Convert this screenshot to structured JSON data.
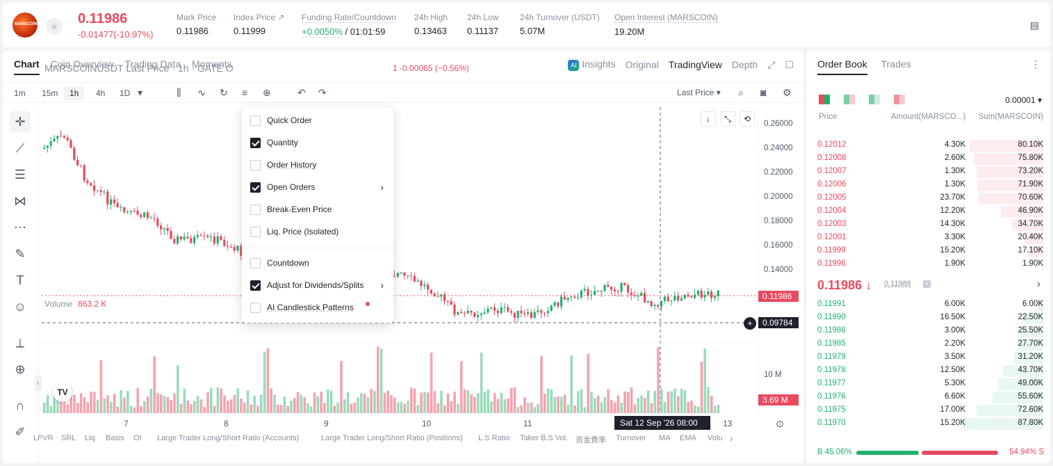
{
  "ticker": {
    "logo_text": "MARSCOIN",
    "last_price": "0.11986",
    "change": "-0.01477(-10.97%)",
    "stats": [
      {
        "label": "Mark Price",
        "value": "0.11986"
      },
      {
        "label": "Index Price ↗",
        "value": "0.11999"
      },
      {
        "label": "Funding Rate/Countdown",
        "value_rate": "+0.0050%",
        "value_cd": "/ 01:01:59"
      },
      {
        "label": "24h High",
        "value": "0.13463"
      },
      {
        "label": "24h Low",
        "value": "0.11137"
      },
      {
        "label": "24h Turnover (USDT)",
        "value": "5.07M"
      },
      {
        "label": "Open Interest (MARSCOIN)",
        "value": "19.20M"
      }
    ]
  },
  "chart_tabs": [
    "Chart",
    "Coin Overview",
    "Trading Data",
    "Moments"
  ],
  "view_tabs": {
    "insights": "Insights",
    "original": "Original",
    "tradingview": "TradingView",
    "depth": "Depth"
  },
  "timeframes": [
    "1m",
    "15m",
    "1h",
    "4h",
    "1D"
  ],
  "price_type": "Last Price ▾",
  "legend": "MARSCOINUSDT Last Price · 1h · GATE  O",
  "legend_change": "1  -0.00065  (−0.56%)",
  "volume_label": "Volume",
  "volume_value": "863.2 K",
  "y_ticks": [
    "0.26000",
    "0.24000",
    "0.22000",
    "0.20000",
    "0.18000",
    "0.16000",
    "0.14000"
  ],
  "price_tag": "0.11986",
  "cross_tag": "0.09784",
  "vol_tick": "10 M",
  "vol_tag": "3.69 M",
  "x_ticks": [
    "7",
    "8",
    "9",
    "10",
    "11",
    "13"
  ],
  "cross_time": "Sat 12 Sep '26   08:00",
  "indicators": [
    "LPVR",
    "SRL",
    "Liq",
    "Basis",
    "OI",
    "Large Trader Long/Short Ratio (Accounts)",
    "Large Trader Long/Short Ratio (Positions)",
    "L.S Ratio",
    "Taker B.S Vol.",
    "资金费率",
    "Turnover",
    "MA",
    "EMA",
    "Volu"
  ],
  "menu": [
    {
      "label": "Quick Order",
      "checked": false
    },
    {
      "label": "Quantity",
      "checked": true
    },
    {
      "label": "Order History",
      "checked": false
    },
    {
      "label": "Open Orders",
      "checked": true
    },
    {
      "label": "Break-Even Price",
      "checked": false
    },
    {
      "label": "Liq. Price (Isolated)",
      "checked": false
    },
    {
      "label": "Countdown",
      "checked": false
    },
    {
      "label": "Adjust for Dividends/Splits",
      "checked": true
    },
    {
      "label": "AI Candlestick Patterns",
      "checked": false
    }
  ],
  "book": {
    "tabs": [
      "Order Book",
      "Trades"
    ],
    "precision": "0.00001 ▾",
    "headers": [
      "Price",
      "Amount(MARSCO...)",
      "Sum(MARSCOIN)"
    ],
    "asks": [
      [
        "0.12012",
        "4.30K",
        "80.10K",
        0.91
      ],
      [
        "0.12008",
        "2.60K",
        "75.80K",
        0.86
      ],
      [
        "0.12007",
        "1.30K",
        "73.20K",
        0.83
      ],
      [
        "0.12006",
        "1.30K",
        "71.90K",
        0.82
      ],
      [
        "0.12005",
        "23.70K",
        "70.60K",
        0.8
      ],
      [
        "0.12004",
        "12.20K",
        "46.90K",
        0.53
      ],
      [
        "0.12003",
        "14.30K",
        "34.70K",
        0.39
      ],
      [
        "0.12001",
        "3.30K",
        "20.40K",
        0.23
      ],
      [
        "0.11999",
        "15.20K",
        "17.10K",
        0.19
      ],
      [
        "0.11996",
        "1.90K",
        "1.90K",
        0.02
      ]
    ],
    "mid_price": "0.11986 ↓",
    "mark_price": "0.11986",
    "bids": [
      [
        "0.11991",
        "6.00K",
        "6.00K",
        0.07
      ],
      [
        "0.11990",
        "16.50K",
        "22.50K",
        0.26
      ],
      [
        "0.11986",
        "3.00K",
        "25.50K",
        0.29
      ],
      [
        "0.11985",
        "2.20K",
        "27.70K",
        0.32
      ],
      [
        "0.11979",
        "3.50K",
        "31.20K",
        0.36
      ],
      [
        "0.11978",
        "12.50K",
        "43.70K",
        0.5
      ],
      [
        "0.11977",
        "5.30K",
        "49.00K",
        0.56
      ],
      [
        "0.11976",
        "6.60K",
        "55.60K",
        0.63
      ],
      [
        "0.11975",
        "17.00K",
        "72.60K",
        0.83
      ],
      [
        "0.11970",
        "15.20K",
        "87.80K",
        1.0
      ]
    ],
    "buy_ratio": "B  45.06%",
    "sell_ratio": "54.94%  S",
    "buy_fraction": 0.4506
  },
  "colors": {
    "up": "#20b26c",
    "down": "#e84a5f"
  }
}
